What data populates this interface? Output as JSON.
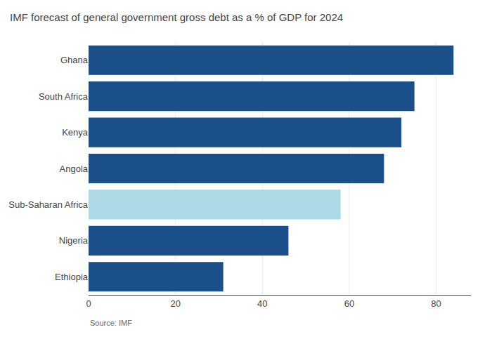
{
  "chart_data": {
    "type": "bar",
    "orientation": "horizontal",
    "title": "IMF forecast of general government gross debt as a % of GDP for 2024",
    "categories": [
      "Ethiopia",
      "Nigeria",
      "Sub-Saharan Africa",
      "Angola",
      "Kenya",
      "South Africa",
      "Ghana"
    ],
    "values": [
      31,
      46,
      58,
      68,
      72,
      75,
      84
    ],
    "colors": [
      "#1b4f8a",
      "#1b4f8a",
      "#add8e6",
      "#1b4f8a",
      "#1b4f8a",
      "#1b4f8a",
      "#1b4f8a"
    ],
    "xlim": [
      0,
      88
    ],
    "xticks": [
      0,
      20,
      40,
      60,
      80
    ],
    "grid": true,
    "annotations": [
      "Source: IMF"
    ]
  }
}
